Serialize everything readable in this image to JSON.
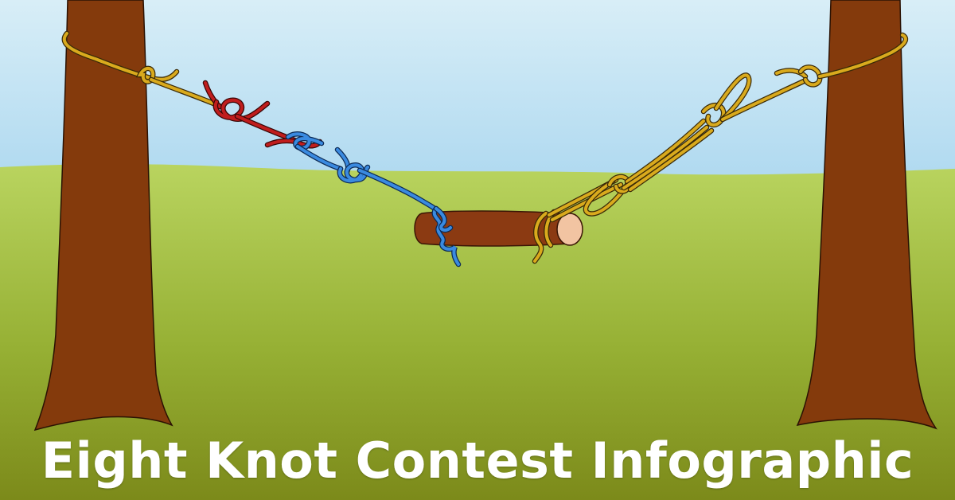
{
  "title": "Eight Knot Contest Infographic",
  "colors": {
    "sky_top": "#d8eef7",
    "sky_bottom": "#a9d6ef",
    "grass_top": "#b9d45f",
    "grass_bottom": "#7c8a1a",
    "tree": "#843a0c",
    "stick": "#8b3a12",
    "stick_end": "#f2c4a2",
    "rope_yellow": "#d9aa1d",
    "rope_red": "#c01d1d",
    "rope_blue": "#3a8ae0",
    "title_text": "#ffffff"
  }
}
